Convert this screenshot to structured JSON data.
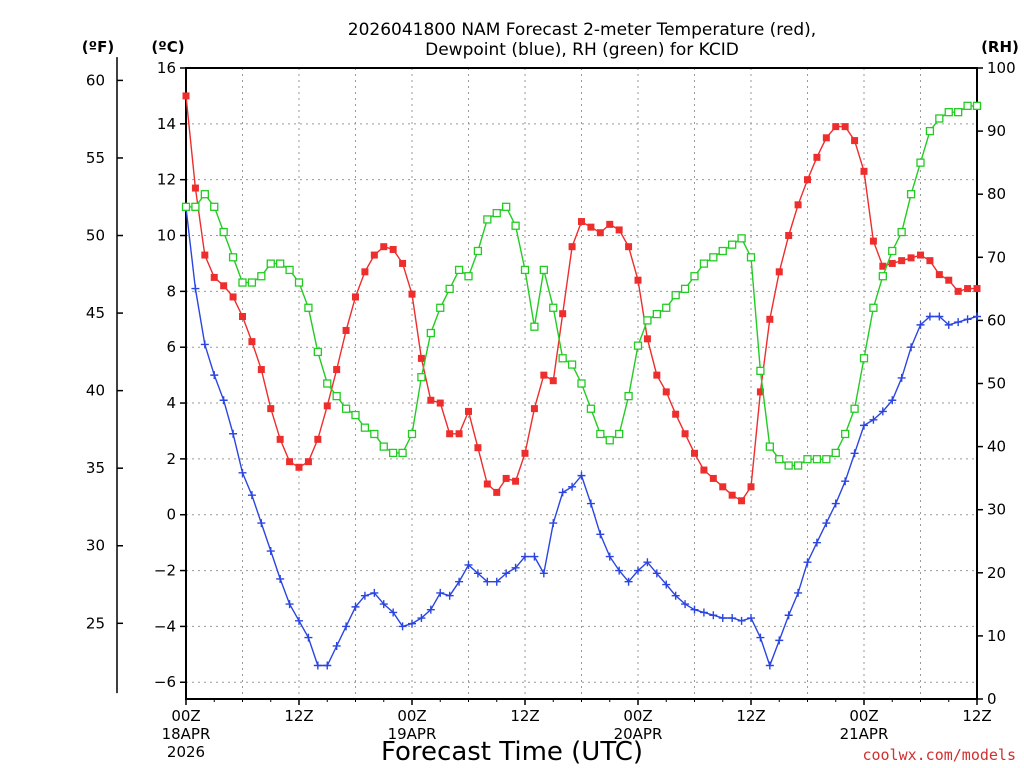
{
  "chart_data": {
    "type": "line",
    "title": "2026041800 NAM Forecast 2-meter Temperature (red),",
    "title_line2": "Dewpoint (blue), RH (green) for KCID",
    "xlabel": "Forecast Time (UTC)",
    "credit": "coolwx.com/models",
    "units": {
      "f": "(ºF)",
      "c": "(ºC)",
      "rh": "(RH)"
    },
    "x_range_hours": [
      0,
      84
    ],
    "x_ticks": [
      {
        "h": 0,
        "label": "00Z",
        "sub": "18APR",
        "sub2": "2026"
      },
      {
        "h": 12,
        "label": "12Z",
        "sub": "",
        "sub2": ""
      },
      {
        "h": 24,
        "label": "00Z",
        "sub": "19APR",
        "sub2": ""
      },
      {
        "h": 36,
        "label": "12Z",
        "sub": "",
        "sub2": ""
      },
      {
        "h": 48,
        "label": "00Z",
        "sub": "20APR",
        "sub2": ""
      },
      {
        "h": 60,
        "label": "12Z",
        "sub": "",
        "sub2": ""
      },
      {
        "h": 72,
        "label": "00Z",
        "sub": "21APR",
        "sub2": ""
      },
      {
        "h": 84,
        "label": "12Z",
        "sub": "",
        "sub2": ""
      }
    ],
    "y_c_range": [
      -6.6,
      16.0
    ],
    "y_c_ticks": [
      16,
      14,
      12,
      10,
      8,
      6,
      4,
      2,
      0,
      -2,
      -4,
      -6
    ],
    "y_f_ticks": [
      60,
      55,
      50,
      45,
      40,
      35,
      30,
      25
    ],
    "y_rh_range": [
      0,
      100
    ],
    "y_rh_ticks": [
      100,
      90,
      80,
      70,
      60,
      50,
      40,
      30,
      20,
      10,
      0
    ],
    "grid": true,
    "series": [
      {
        "name": "Temperature",
        "unit": "C",
        "color": "#ee2d2d",
        "marker": "filled-square",
        "values": [
          15.0,
          11.7,
          9.3,
          8.5,
          8.2,
          7.8,
          7.1,
          6.2,
          5.2,
          3.8,
          2.7,
          1.9,
          1.7,
          1.9,
          2.7,
          3.9,
          5.2,
          6.6,
          7.8,
          8.7,
          9.3,
          9.6,
          9.5,
          9.0,
          7.9,
          5.6,
          4.1,
          4.0,
          2.9,
          2.9,
          3.7,
          2.4,
          1.1,
          0.8,
          1.3,
          1.2,
          2.2,
          3.8,
          5.0,
          4.8,
          7.2,
          9.6,
          10.5,
          10.3,
          10.1,
          10.4,
          10.2,
          9.6,
          8.4,
          6.3,
          5.0,
          4.4,
          3.6,
          2.9,
          2.2,
          1.6,
          1.3,
          1.0,
          0.7,
          0.5,
          1.0,
          4.4,
          7.0,
          8.7,
          10.0,
          11.1,
          12.0,
          12.8,
          13.5,
          13.9,
          13.9,
          13.4,
          12.3,
          9.8,
          8.9,
          9.0,
          9.1,
          9.2,
          9.3,
          9.1,
          8.6,
          8.4,
          8.0,
          8.1,
          8.1
        ]
      },
      {
        "name": "Dewpoint",
        "unit": "C",
        "color": "#2b45e0",
        "marker": "plus",
        "values": [
          11.0,
          8.1,
          6.1,
          5.0,
          4.1,
          2.9,
          1.5,
          0.7,
          -0.3,
          -1.3,
          -2.3,
          -3.2,
          -3.8,
          -4.4,
          -5.4,
          -5.4,
          -4.7,
          -4.0,
          -3.3,
          -2.9,
          -2.8,
          -3.2,
          -3.5,
          -4.0,
          -3.9,
          -3.7,
          -3.4,
          -2.8,
          -2.9,
          -2.4,
          -1.8,
          -2.1,
          -2.4,
          -2.4,
          -2.1,
          -1.9,
          -1.5,
          -1.5,
          -2.1,
          -0.3,
          0.8,
          1.0,
          1.4,
          0.4,
          -0.7,
          -1.5,
          -2.0,
          -2.4,
          -2.0,
          -1.7,
          -2.1,
          -2.5,
          -2.9,
          -3.2,
          -3.4,
          -3.5,
          -3.6,
          -3.7,
          -3.7,
          -3.8,
          -3.7,
          -4.4,
          -5.4,
          -4.5,
          -3.6,
          -2.8,
          -1.7,
          -1.0,
          -0.3,
          0.4,
          1.2,
          2.2,
          3.2,
          3.4,
          3.7,
          4.1,
          4.9,
          6.0,
          6.8,
          7.1,
          7.1,
          6.8,
          6.9,
          7.0,
          7.1
        ]
      },
      {
        "name": "RH",
        "unit": "%",
        "color": "#22cc22",
        "marker": "open-square",
        "values": [
          78,
          78,
          80,
          78,
          74,
          70,
          66,
          66,
          67,
          69,
          69,
          68,
          66,
          62,
          55,
          50,
          48,
          46,
          45,
          43,
          42,
          40,
          39,
          39,
          42,
          51,
          58,
          62,
          65,
          68,
          67,
          71,
          76,
          77,
          78,
          75,
          68,
          59,
          68,
          62,
          54,
          53,
          50,
          46,
          42,
          41,
          42,
          48,
          56,
          60,
          61,
          62,
          64,
          65,
          67,
          69,
          70,
          71,
          72,
          73,
          70,
          52,
          40,
          38,
          37,
          37,
          38,
          38,
          38,
          39,
          42,
          46,
          54,
          62,
          67,
          71,
          74,
          80,
          85,
          90,
          92,
          93,
          93,
          94,
          94
        ]
      }
    ]
  }
}
